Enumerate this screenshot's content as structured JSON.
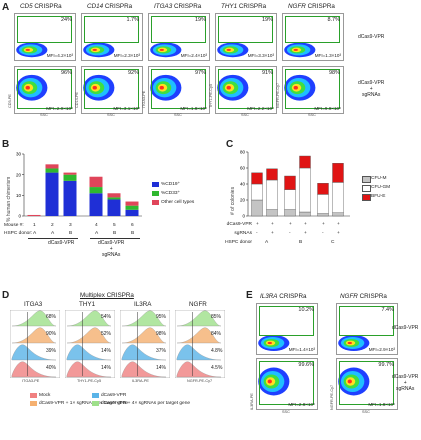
{
  "panel_a": {
    "letter": "A",
    "condition_top": "dCas9-VPR",
    "condition_bottom": [
      "dCas9-VPR",
      "+",
      "sgRNAs"
    ],
    "columns": [
      {
        "gene": "CD5",
        "suffix": " CRISPRa",
        "ylabel": "CD5-PE",
        "xlabel": "SSC",
        "top_pct": "24%",
        "top_mfi": "MFI=4.2×10³",
        "bot_pct": "96%",
        "bot_mfi": "MFI=2.0×10⁴"
      },
      {
        "gene": "CD14",
        "suffix": " CRISPRa",
        "ylabel": "CD14-PE",
        "xlabel": "SSC",
        "top_pct": "1.7%",
        "top_mfi": "MFI=2.3×10³",
        "bot_pct": "92%",
        "bot_mfi": "MFI=3.1×10⁵"
      },
      {
        "gene": "ITGA3",
        "suffix": " CRISPRa",
        "ylabel": "ITGA3-PE",
        "xlabel": "SSC",
        "top_pct": "19%",
        "top_mfi": "MFI=2.4×10³",
        "bot_pct": "97%",
        "bot_mfi": "MFI=1.8×10⁵"
      },
      {
        "gene": "THY1",
        "suffix": " CRISPRa",
        "ylabel": "THY1-PE-Cy5",
        "xlabel": "SSC",
        "top_pct": "19%",
        "top_mfi": "MFI=3.3×10³",
        "bot_pct": "91%",
        "bot_mfi": "MFI=2.2×10⁴"
      },
      {
        "gene": "NGFR",
        "suffix": " CRISPRa",
        "ylabel": "NGFR-PE-Cy7",
        "xlabel": "SSC",
        "top_pct": "8.7%",
        "top_mfi": "MFI=1.3×10³",
        "bot_pct": "98%",
        "bot_mfi": "MFI=9.9×10⁵"
      }
    ]
  },
  "panel_b": {
    "letter": "B",
    "ylabel": "% human chimerism",
    "yticks": [
      "0",
      "10",
      "20",
      "30"
    ],
    "legend": [
      {
        "label": "%CD19⁺",
        "color": "#1f2fd6"
      },
      {
        "label": "%CD33⁺",
        "color": "#2fb82f"
      },
      {
        "label": "Other cell types",
        "color": "#e0455a"
      }
    ],
    "row1_label": "Mouse #:",
    "row2_label": "HSPC donor:",
    "mice": [
      "1",
      "2",
      "3",
      "4",
      "5",
      "6"
    ],
    "donors": [
      "A",
      "A",
      "B",
      "A",
      "B",
      "B"
    ],
    "group1": "dCas9-VPR",
    "group2": [
      "dCas9-VPR",
      "+",
      "sgRNAs"
    ]
  },
  "panel_c": {
    "letter": "C",
    "ylabel": "# of colonies",
    "yticks": [
      "0",
      "20",
      "40",
      "60",
      "80"
    ],
    "legend": [
      {
        "label": "CFU-M",
        "color": "#c4c4c4"
      },
      {
        "label": "CFU-GM",
        "color": "#ffffff"
      },
      {
        "label": "BFU-E",
        "color": "#e01414"
      }
    ],
    "row_labels": [
      "dCas9-VPR",
      "sgRNAs",
      "HSPC donor"
    ],
    "row1": [
      "+",
      "+",
      "+",
      "+",
      "+",
      "+"
    ],
    "row2": [
      "-",
      "+",
      "-",
      "+",
      "-",
      "+"
    ],
    "donors": [
      "A",
      "B",
      "C"
    ]
  },
  "panel_d": {
    "letter": "D",
    "title": "Multiplex CRISPRa",
    "columns": [
      {
        "gene": "ITGA3",
        "xlabel": "ITGA3-PE",
        "pcts": [
          "68%",
          "90%",
          "39%",
          "40%"
        ]
      },
      {
        "gene": "THY1",
        "xlabel": "THY1-PE-Cy5",
        "pcts": [
          "54%",
          "52%",
          "14%",
          "14%"
        ]
      },
      {
        "gene": "IL3RA",
        "xlabel": "IL3RA-PE",
        "pcts": [
          "95%",
          "98%",
          "37%",
          "14%"
        ]
      },
      {
        "gene": "NGFR",
        "xlabel": "NGFR-PE-Cy7",
        "pcts": [
          "85%",
          "84%",
          "4.8%",
          "4.5%"
        ]
      }
    ],
    "legend": [
      {
        "label": "Mock",
        "color": "#f08080"
      },
      {
        "label": "dCas9-VPR",
        "color": "#5ab4e8"
      },
      {
        "label": "dCas9-VPR + 1× sgRNAs per target gene",
        "color": "#f5b070"
      },
      {
        "label": "dCas9-VPR + 4× sgRNAs per target gene",
        "color": "#9ee08a"
      }
    ]
  },
  "panel_e": {
    "letter": "E",
    "condition_top": "dCas9-VPR",
    "condition_bottom": [
      "dCas9-VPR",
      "+",
      "sgRNAs"
    ],
    "columns": [
      {
        "gene": "IL3RA",
        "suffix": " CRISPRa",
        "ylabel": "IL3RA-PE",
        "xlabel": "SSC",
        "top_pct": "10.2%",
        "top_mfi": "MFI=1.4×10³",
        "bot_pct": "99.6%",
        "bot_mfi": "MFI=2.8×10⁵"
      },
      {
        "gene": "NGFR",
        "suffix": " CRISPRa",
        "ylabel": "NGFR-PE-Cy7",
        "xlabel": "SSC",
        "top_pct": "7.4%",
        "top_mfi": "MFI=2.9×10³",
        "bot_pct": "99.7%",
        "bot_mfi": "MFI=1.8×10⁵"
      }
    ]
  },
  "chart_data": [
    {
      "type": "bar",
      "stacked": true,
      "categories": [
        "1",
        "2",
        "3",
        "4",
        "5",
        "6"
      ],
      "series": [
        {
          "name": "%CD19⁺",
          "values": [
            0,
            21,
            17,
            11,
            8,
            3
          ]
        },
        {
          "name": "%CD33⁺",
          "values": [
            0,
            2,
            3,
            3,
            1,
            2
          ]
        },
        {
          "name": "Other cell types",
          "values": [
            0.5,
            2,
            1,
            5,
            2,
            2
          ]
        }
      ],
      "ylabel": "% human chimerism",
      "ylim": [
        0,
        30
      ]
    },
    {
      "type": "bar",
      "stacked": true,
      "categories": [
        "A-",
        "A+",
        "B-",
        "B+",
        "C-",
        "C+"
      ],
      "series": [
        {
          "name": "CFU-M",
          "values": [
            20,
            8,
            8,
            5,
            3,
            4
          ]
        },
        {
          "name": "CFU-GM",
          "values": [
            20,
            37,
            25,
            55,
            24,
            38
          ]
        },
        {
          "name": "BFU-E",
          "values": [
            14,
            14,
            17,
            15,
            14,
            24
          ]
        }
      ],
      "ylabel": "# of colonies",
      "ylim": [
        0,
        80
      ]
    }
  ]
}
